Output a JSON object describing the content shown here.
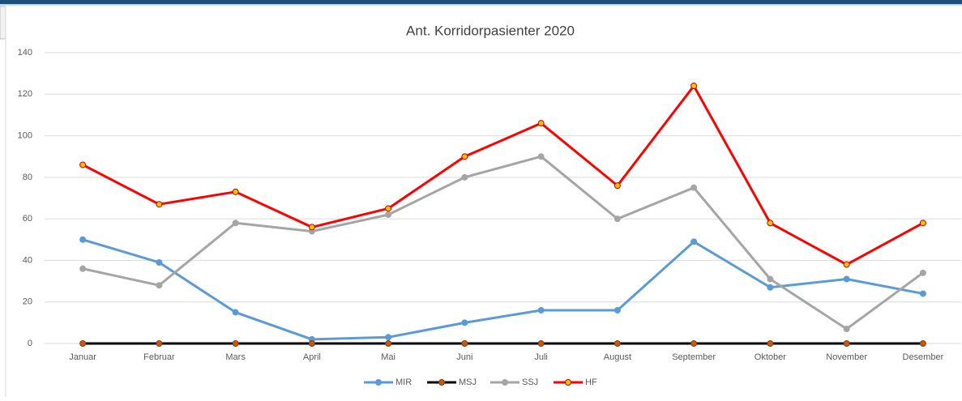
{
  "chart_data": {
    "type": "line",
    "title": "Ant. Korridorpasienter 2020",
    "categories": [
      "Januar",
      "Februar",
      "Mars",
      "April",
      "Mai",
      "Juni",
      "Juli",
      "August",
      "September",
      "Oktober",
      "November",
      "Desember"
    ],
    "series": [
      {
        "name": "MIR",
        "color": "#5b9bd5",
        "marker_color": "#5b9bd5",
        "values": [
          50,
          39,
          15,
          2,
          3,
          10,
          16,
          16,
          49,
          27,
          31,
          24
        ]
      },
      {
        "name": "MSJ",
        "color": "#000000",
        "marker_color": "#c55a11",
        "values": [
          0,
          0,
          0,
          0,
          0,
          0,
          0,
          0,
          0,
          0,
          0,
          0
        ]
      },
      {
        "name": "SSJ",
        "color": "#a5a5a5",
        "marker_color": "#a5a5a5",
        "values": [
          36,
          28,
          58,
          54,
          62,
          80,
          90,
          60,
          75,
          31,
          7,
          34
        ]
      },
      {
        "name": "HF",
        "color": "#ff0000",
        "marker_color": "#ffc000",
        "values": [
          86,
          67,
          73,
          56,
          65,
          90,
          106,
          76,
          124,
          58,
          38,
          58
        ]
      }
    ],
    "ylim": [
      0,
      140
    ],
    "yticks": [
      0,
      20,
      40,
      60,
      80,
      100,
      120,
      140
    ],
    "grid": true,
    "legend": "bottom"
  }
}
